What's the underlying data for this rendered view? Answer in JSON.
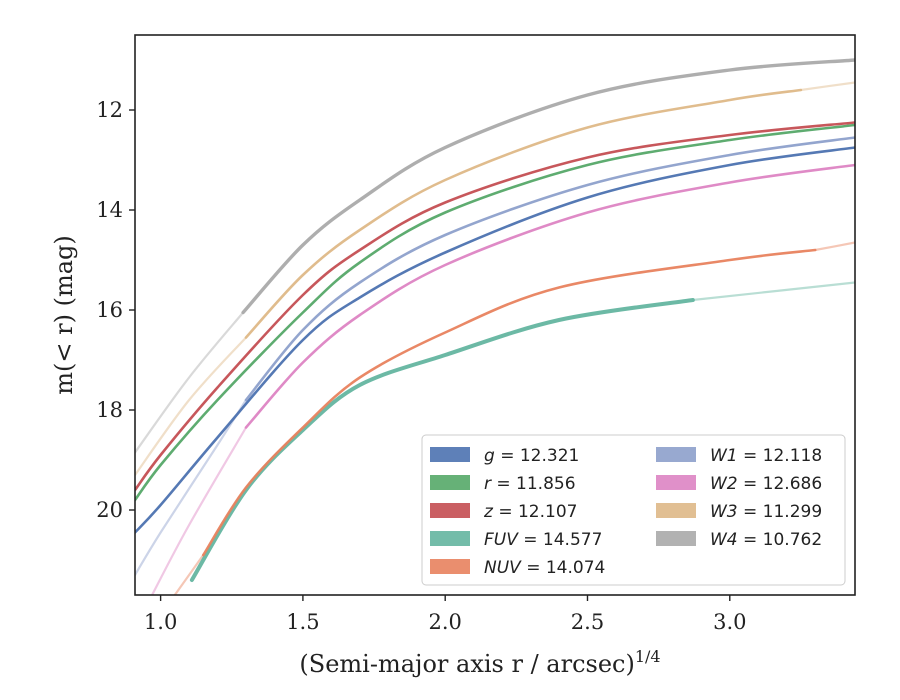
{
  "chart_data": {
    "type": "line",
    "xlabel": "(Semi-major axis r / arcsec)",
    "xlabel_exponent": "1/4",
    "ylabel": "m(< r) (mag)",
    "xlim": [
      0.91,
      3.44
    ],
    "ylim": [
      21.7,
      10.5
    ],
    "y_inverted": true,
    "x_ticks": [
      1.0,
      1.5,
      2.0,
      2.5,
      3.0
    ],
    "x_tick_labels": [
      "1.0",
      "1.5",
      "2.0",
      "2.5",
      "3.0"
    ],
    "y_ticks": [
      12,
      14,
      16,
      18,
      20
    ],
    "y_tick_labels": [
      "12",
      "14",
      "16",
      "18",
      "20"
    ],
    "legend_position": "lower-right",
    "legend_columns": 2,
    "series": [
      {
        "band": "g",
        "value": "12.321",
        "color": "#4c72b0",
        "points": [
          [
            0.91,
            20.45
          ],
          [
            1.0,
            19.9
          ],
          [
            1.2,
            18.55
          ],
          [
            1.5,
            16.6
          ],
          [
            1.7,
            15.75
          ],
          [
            2.0,
            14.85
          ],
          [
            2.5,
            13.75
          ],
          [
            3.0,
            13.1
          ],
          [
            3.44,
            12.75
          ]
        ],
        "faint_points": [
          [
            1.3,
            17.85
          ],
          [
            1.5,
            16.6
          ]
        ]
      },
      {
        "band": "r",
        "value": "11.856",
        "color": "#55a868",
        "points": [
          [
            0.91,
            19.8
          ],
          [
            1.0,
            19.1
          ],
          [
            1.2,
            17.8
          ],
          [
            1.5,
            16.05
          ],
          [
            1.7,
            15.05
          ],
          [
            2.0,
            14.05
          ],
          [
            2.5,
            13.1
          ],
          [
            3.0,
            12.6
          ],
          [
            3.44,
            12.3
          ]
        ],
        "faint_points": []
      },
      {
        "band": "z",
        "value": "12.107",
        "color": "#c44e52",
        "points": [
          [
            0.91,
            19.6
          ],
          [
            1.0,
            18.9
          ],
          [
            1.2,
            17.55
          ],
          [
            1.5,
            15.7
          ],
          [
            1.7,
            14.8
          ],
          [
            2.0,
            13.85
          ],
          [
            2.5,
            12.95
          ],
          [
            3.0,
            12.5
          ],
          [
            3.44,
            12.25
          ]
        ],
        "faint_points": []
      },
      {
        "band": "FUV",
        "value": "14.577",
        "color": "#64b5a0",
        "points": [
          [
            1.11,
            21.4
          ],
          [
            1.3,
            19.6
          ],
          [
            1.5,
            18.4
          ],
          [
            1.7,
            17.5
          ],
          [
            2.0,
            16.9
          ],
          [
            2.4,
            16.2
          ],
          [
            2.87,
            15.8
          ]
        ],
        "faint_points": [
          [
            1.11,
            21.4
          ],
          [
            2.87,
            15.8
          ],
          [
            3.44,
            15.45
          ]
        ]
      },
      {
        "band": "NUV",
        "value": "14.074",
        "color": "#e8825e",
        "points": [
          [
            1.15,
            20.9
          ],
          [
            1.3,
            19.55
          ],
          [
            1.5,
            18.35
          ],
          [
            1.7,
            17.35
          ],
          [
            2.0,
            16.45
          ],
          [
            2.4,
            15.55
          ],
          [
            3.0,
            15.0
          ],
          [
            3.3,
            14.8
          ]
        ],
        "faint_points": [
          [
            1.05,
            21.7
          ],
          [
            1.15,
            20.9
          ],
          [
            3.3,
            14.8
          ],
          [
            3.44,
            14.65
          ]
        ]
      },
      {
        "band": "W1",
        "value": "12.118",
        "color": "#8da0cb",
        "points": [
          [
            1.3,
            17.8
          ],
          [
            1.5,
            16.4
          ],
          [
            1.7,
            15.45
          ],
          [
            2.0,
            14.5
          ],
          [
            2.5,
            13.5
          ],
          [
            3.0,
            12.9
          ],
          [
            3.44,
            12.55
          ]
        ],
        "faint_points": [
          [
            0.91,
            21.3
          ],
          [
            1.0,
            20.45
          ],
          [
            1.2,
            18.7
          ],
          [
            1.3,
            17.8
          ]
        ]
      },
      {
        "band": "W2",
        "value": "12.686",
        "color": "#dd84c3",
        "points": [
          [
            1.3,
            18.35
          ],
          [
            1.5,
            17.05
          ],
          [
            1.7,
            16.1
          ],
          [
            2.0,
            15.1
          ],
          [
            2.5,
            14.05
          ],
          [
            3.0,
            13.45
          ],
          [
            3.44,
            13.1
          ]
        ],
        "faint_points": [
          [
            0.97,
            21.7
          ],
          [
            1.1,
            20.3
          ],
          [
            1.3,
            18.35
          ]
        ]
      },
      {
        "band": "W3",
        "value": "11.299",
        "color": "#deb887",
        "points": [
          [
            1.3,
            16.55
          ],
          [
            1.5,
            15.3
          ],
          [
            1.7,
            14.4
          ],
          [
            2.0,
            13.4
          ],
          [
            2.5,
            12.35
          ],
          [
            3.0,
            11.8
          ],
          [
            3.25,
            11.6
          ]
        ],
        "faint_points": [
          [
            0.91,
            19.3
          ],
          [
            1.1,
            17.8
          ],
          [
            1.3,
            16.55
          ],
          [
            3.25,
            11.6
          ],
          [
            3.44,
            11.45
          ]
        ]
      },
      {
        "band": "W4",
        "value": "10.762",
        "color": "#aaaaaa",
        "points": [
          [
            1.29,
            16.05
          ],
          [
            1.5,
            14.7
          ],
          [
            1.7,
            13.8
          ],
          [
            2.0,
            12.75
          ],
          [
            2.5,
            11.7
          ],
          [
            3.0,
            11.2
          ],
          [
            3.44,
            11.0
          ]
        ],
        "faint_points": [
          [
            0.91,
            18.85
          ],
          [
            1.1,
            17.35
          ],
          [
            1.29,
            16.05
          ]
        ]
      }
    ]
  }
}
